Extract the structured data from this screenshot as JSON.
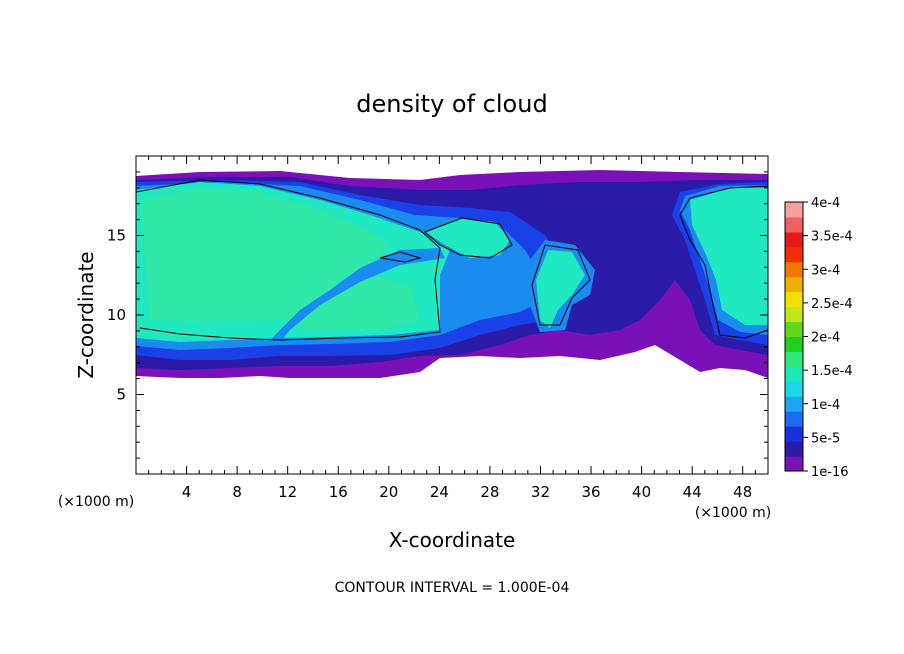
{
  "chart_data": {
    "type": "heatmap",
    "title": "density of cloud",
    "xlabel": "X-coordinate",
    "ylabel": "Z-coordinate",
    "x_unit": "(×1000 m)",
    "xlim": [
      0,
      50
    ],
    "ylim": [
      0,
      20
    ],
    "x_ticks": [
      4,
      8,
      12,
      16,
      20,
      24,
      28,
      32,
      36,
      40,
      44,
      48
    ],
    "y_ticks": [
      5,
      10,
      15
    ],
    "footer": "CONTOUR INTERVAL = 1.000E-04",
    "colorbar": {
      "labels": [
        "1e-16",
        "5e-5",
        "1e-4",
        "1.5e-4",
        "2e-4",
        "2.5e-4",
        "3e-4",
        "3.5e-4",
        "4e-4"
      ],
      "levels": [
        1e-16,
        5e-05,
        0.0001,
        0.00015,
        0.0002,
        0.00025,
        0.0003,
        0.00035,
        0.0004
      ],
      "colors": [
        "#7a10b8",
        "#2a1ca8",
        "#1a30e0",
        "#1a6cf0",
        "#1aa8f0",
        "#1ad8e8",
        "#1ae8b8",
        "#30e878",
        "#20d020",
        "#60d818",
        "#c0e818",
        "#f0e000",
        "#f0b000",
        "#f07800",
        "#f03000",
        "#e81818",
        "#f06060",
        "#f8a0a0"
      ]
    },
    "field_colors": {
      "edge": "#7a10b8",
      "low": "#2a1ca8",
      "mid": "#1a40e8",
      "high": "#1a8cf0",
      "peak": "#20e8c0",
      "core": "#30e8a8",
      "contour": "#000000"
    }
  }
}
